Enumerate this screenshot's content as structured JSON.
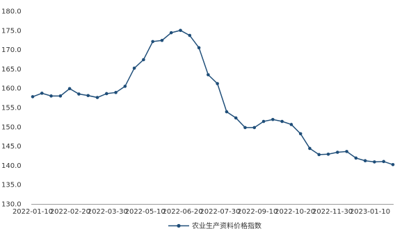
{
  "chart_data": {
    "type": "line",
    "title": "",
    "xlabel": "",
    "ylabel": "",
    "ylim": [
      130,
      180
    ],
    "yticks": [
      "130.0",
      "135.0",
      "140.0",
      "145.0",
      "150.0",
      "155.0",
      "160.0",
      "165.0",
      "170.0",
      "175.0",
      "180.0"
    ],
    "xtick_labels": [
      "2022-01-10",
      "2022-02-20",
      "2022-03-30",
      "2022-05-10",
      "2022-06-20",
      "2022-07-30",
      "2022-09-10",
      "2022-10-20",
      "2022-11-30",
      "2023-01-10"
    ],
    "grid": false,
    "legend_position": "bottom",
    "series": [
      {
        "name": "农业生产资料价格指数",
        "color": "#1f4e79",
        "values": [
          157.8,
          158.7,
          158.0,
          158.0,
          159.9,
          158.5,
          158.1,
          157.6,
          158.6,
          158.9,
          160.5,
          165.2,
          167.4,
          172.1,
          172.4,
          174.4,
          175.0,
          173.7,
          170.5,
          163.5,
          161.2,
          153.9,
          152.3,
          149.8,
          149.8,
          151.4,
          151.9,
          151.4,
          150.6,
          148.2,
          144.4,
          142.8,
          142.9,
          143.4,
          143.6,
          141.9,
          141.2,
          140.9,
          141.0,
          140.2
        ]
      }
    ]
  }
}
